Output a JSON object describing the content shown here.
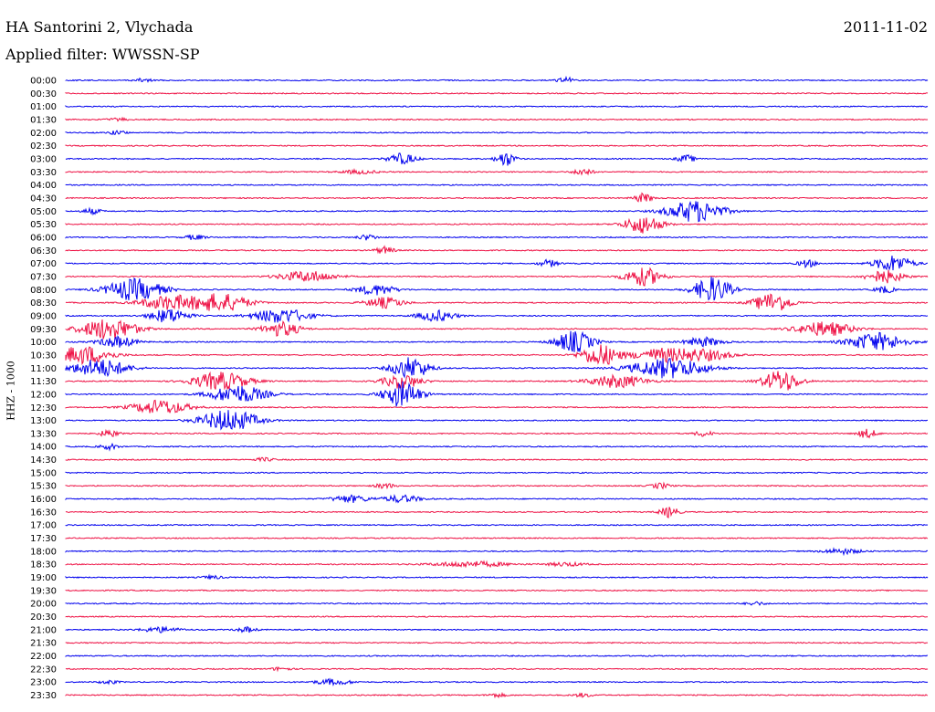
{
  "header": {
    "station": "HA Santorini 2, Vlychada",
    "filter": "Applied filter: WWSSN-SP",
    "date": "2011-11-02"
  },
  "colors": {
    "odd": "#0000ee",
    "even": "#ee1144"
  },
  "chart_data": {
    "type": "line",
    "title": "HA Santorini 2, Vlychada",
    "ylabel": "HHZ - 1000",
    "date": "2011-11-02",
    "filter": "WWSSN-SP",
    "rows": [
      {
        "label": "00:00",
        "color": "#0000ee",
        "events": [
          {
            "x": 0.09,
            "amp": 2,
            "w": 0.01
          },
          {
            "x": 0.58,
            "amp": 3,
            "w": 0.01
          }
        ]
      },
      {
        "label": "00:30",
        "color": "#ee1144",
        "events": []
      },
      {
        "label": "01:00",
        "color": "#0000ee",
        "events": []
      },
      {
        "label": "01:30",
        "color": "#ee1144",
        "events": [
          {
            "x": 0.06,
            "amp": 2,
            "w": 0.01
          }
        ]
      },
      {
        "label": "02:00",
        "color": "#0000ee",
        "events": [
          {
            "x": 0.06,
            "amp": 2,
            "w": 0.01
          }
        ]
      },
      {
        "label": "02:30",
        "color": "#ee1144",
        "events": []
      },
      {
        "label": "03:00",
        "color": "#0000ee",
        "events": [
          {
            "x": 0.39,
            "amp": 6,
            "w": 0.015
          },
          {
            "x": 0.51,
            "amp": 8,
            "w": 0.01
          },
          {
            "x": 0.72,
            "amp": 4,
            "w": 0.01
          }
        ]
      },
      {
        "label": "03:30",
        "color": "#ee1144",
        "events": [
          {
            "x": 0.34,
            "amp": 2,
            "w": 0.02
          },
          {
            "x": 0.6,
            "amp": 4,
            "w": 0.01
          }
        ]
      },
      {
        "label": "04:00",
        "color": "#0000ee",
        "events": []
      },
      {
        "label": "04:30",
        "color": "#ee1144",
        "events": [
          {
            "x": 0.67,
            "amp": 5,
            "w": 0.01
          }
        ]
      },
      {
        "label": "05:00",
        "color": "#0000ee",
        "events": [
          {
            "x": 0.03,
            "amp": 3,
            "w": 0.01
          },
          {
            "x": 0.73,
            "amp": 12,
            "w": 0.03
          }
        ]
      },
      {
        "label": "05:30",
        "color": "#ee1144",
        "events": [
          {
            "x": 0.67,
            "amp": 10,
            "w": 0.02
          }
        ]
      },
      {
        "label": "06:00",
        "color": "#0000ee",
        "events": [
          {
            "x": 0.15,
            "amp": 3,
            "w": 0.01
          },
          {
            "x": 0.35,
            "amp": 3,
            "w": 0.01
          }
        ]
      },
      {
        "label": "06:30",
        "color": "#ee1144",
        "events": [
          {
            "x": 0.37,
            "amp": 4,
            "w": 0.01
          }
        ]
      },
      {
        "label": "07:00",
        "color": "#0000ee",
        "events": [
          {
            "x": 0.56,
            "amp": 4,
            "w": 0.01
          },
          {
            "x": 0.86,
            "amp": 4,
            "w": 0.01
          },
          {
            "x": 0.96,
            "amp": 9,
            "w": 0.02
          }
        ]
      },
      {
        "label": "07:30",
        "color": "#ee1144",
        "events": [
          {
            "x": 0.28,
            "amp": 6,
            "w": 0.03
          },
          {
            "x": 0.67,
            "amp": 10,
            "w": 0.02
          },
          {
            "x": 0.95,
            "amp": 7,
            "w": 0.02
          }
        ]
      },
      {
        "label": "08:00",
        "color": "#0000ee",
        "events": [
          {
            "x": 0.08,
            "amp": 12,
            "w": 0.03
          },
          {
            "x": 0.36,
            "amp": 6,
            "w": 0.02
          },
          {
            "x": 0.75,
            "amp": 14,
            "w": 0.02
          },
          {
            "x": 0.95,
            "amp": 4,
            "w": 0.01
          }
        ]
      },
      {
        "label": "08:30",
        "color": "#ee1144",
        "events": [
          {
            "x": 0.12,
            "amp": 8,
            "w": 0.03
          },
          {
            "x": 0.18,
            "amp": 10,
            "w": 0.03
          },
          {
            "x": 0.37,
            "amp": 6,
            "w": 0.02
          },
          {
            "x": 0.82,
            "amp": 11,
            "w": 0.02
          }
        ]
      },
      {
        "label": "09:00",
        "color": "#0000ee",
        "events": [
          {
            "x": 0.12,
            "amp": 8,
            "w": 0.02
          },
          {
            "x": 0.25,
            "amp": 8,
            "w": 0.03
          },
          {
            "x": 0.43,
            "amp": 6,
            "w": 0.02
          }
        ]
      },
      {
        "label": "09:30",
        "color": "#ee1144",
        "events": [
          {
            "x": 0.05,
            "amp": 12,
            "w": 0.03
          },
          {
            "x": 0.25,
            "amp": 8,
            "w": 0.02
          },
          {
            "x": 0.88,
            "amp": 8,
            "w": 0.03
          }
        ]
      },
      {
        "label": "10:00",
        "color": "#0000ee",
        "events": [
          {
            "x": 0.06,
            "amp": 6,
            "w": 0.02
          },
          {
            "x": 0.59,
            "amp": 12,
            "w": 0.02
          },
          {
            "x": 0.74,
            "amp": 5,
            "w": 0.02
          },
          {
            "x": 0.94,
            "amp": 10,
            "w": 0.03
          }
        ]
      },
      {
        "label": "10:30",
        "color": "#ee1144",
        "events": [
          {
            "x": 0.02,
            "amp": 10,
            "w": 0.03
          },
          {
            "x": 0.62,
            "amp": 12,
            "w": 0.02
          },
          {
            "x": 0.69,
            "amp": 7,
            "w": 0.03
          },
          {
            "x": 0.74,
            "amp": 6,
            "w": 0.03
          }
        ]
      },
      {
        "label": "11:00",
        "color": "#0000ee",
        "events": [
          {
            "x": 0.04,
            "amp": 10,
            "w": 0.03
          },
          {
            "x": 0.4,
            "amp": 12,
            "w": 0.02
          },
          {
            "x": 0.7,
            "amp": 11,
            "w": 0.04
          }
        ]
      },
      {
        "label": "11:30",
        "color": "#ee1144",
        "events": [
          {
            "x": 0.18,
            "amp": 10,
            "w": 0.03
          },
          {
            "x": 0.39,
            "amp": 8,
            "w": 0.02
          },
          {
            "x": 0.64,
            "amp": 7,
            "w": 0.03
          },
          {
            "x": 0.83,
            "amp": 12,
            "w": 0.02
          }
        ]
      },
      {
        "label": "12:00",
        "color": "#0000ee",
        "events": [
          {
            "x": 0.2,
            "amp": 10,
            "w": 0.03
          },
          {
            "x": 0.39,
            "amp": 14,
            "w": 0.02
          }
        ]
      },
      {
        "label": "12:30",
        "color": "#ee1144",
        "events": [
          {
            "x": 0.11,
            "amp": 8,
            "w": 0.03
          }
        ]
      },
      {
        "label": "13:00",
        "color": "#0000ee",
        "events": [
          {
            "x": 0.19,
            "amp": 12,
            "w": 0.03
          }
        ]
      },
      {
        "label": "13:30",
        "color": "#ee1144",
        "events": [
          {
            "x": 0.05,
            "amp": 4,
            "w": 0.01
          },
          {
            "x": 0.74,
            "amp": 3,
            "w": 0.01
          },
          {
            "x": 0.93,
            "amp": 5,
            "w": 0.01
          }
        ]
      },
      {
        "label": "14:00",
        "color": "#0000ee",
        "events": [
          {
            "x": 0.05,
            "amp": 3,
            "w": 0.01
          }
        ]
      },
      {
        "label": "14:30",
        "color": "#ee1144",
        "events": [
          {
            "x": 0.23,
            "amp": 2,
            "w": 0.01
          }
        ]
      },
      {
        "label": "15:00",
        "color": "#0000ee",
        "events": []
      },
      {
        "label": "15:30",
        "color": "#ee1144",
        "events": [
          {
            "x": 0.37,
            "amp": 3,
            "w": 0.01
          },
          {
            "x": 0.69,
            "amp": 3,
            "w": 0.01
          }
        ]
      },
      {
        "label": "16:00",
        "color": "#0000ee",
        "events": [
          {
            "x": 0.33,
            "amp": 4,
            "w": 0.02
          },
          {
            "x": 0.39,
            "amp": 4,
            "w": 0.02
          }
        ]
      },
      {
        "label": "16:30",
        "color": "#ee1144",
        "events": [
          {
            "x": 0.7,
            "amp": 6,
            "w": 0.01
          }
        ]
      },
      {
        "label": "17:00",
        "color": "#0000ee",
        "events": []
      },
      {
        "label": "17:30",
        "color": "#ee1144",
        "events": []
      },
      {
        "label": "18:00",
        "color": "#0000ee",
        "events": [
          {
            "x": 0.9,
            "amp": 3,
            "w": 0.02
          }
        ]
      },
      {
        "label": "18:30",
        "color": "#ee1144",
        "events": [
          {
            "x": 0.47,
            "amp": 3,
            "w": 0.04
          },
          {
            "x": 0.58,
            "amp": 2,
            "w": 0.02
          }
        ]
      },
      {
        "label": "19:00",
        "color": "#0000ee",
        "events": [
          {
            "x": 0.17,
            "amp": 2,
            "w": 0.01
          }
        ]
      },
      {
        "label": "19:30",
        "color": "#ee1144",
        "events": []
      },
      {
        "label": "20:00",
        "color": "#0000ee",
        "events": [
          {
            "x": 0.8,
            "amp": 2,
            "w": 0.01
          }
        ]
      },
      {
        "label": "20:30",
        "color": "#ee1144",
        "events": []
      },
      {
        "label": "21:00",
        "color": "#0000ee",
        "events": [
          {
            "x": 0.11,
            "amp": 3,
            "w": 0.02
          },
          {
            "x": 0.21,
            "amp": 3,
            "w": 0.01
          }
        ]
      },
      {
        "label": "21:30",
        "color": "#ee1144",
        "events": []
      },
      {
        "label": "22:00",
        "color": "#0000ee",
        "events": []
      },
      {
        "label": "22:30",
        "color": "#ee1144",
        "events": [
          {
            "x": 0.25,
            "amp": 2,
            "w": 0.01
          }
        ]
      },
      {
        "label": "23:00",
        "color": "#0000ee",
        "events": [
          {
            "x": 0.31,
            "amp": 3,
            "w": 0.02
          },
          {
            "x": 0.05,
            "amp": 2,
            "w": 0.01
          }
        ]
      },
      {
        "label": "23:30",
        "color": "#ee1144",
        "events": [
          {
            "x": 0.5,
            "amp": 2,
            "w": 0.01
          },
          {
            "x": 0.6,
            "amp": 2,
            "w": 0.01
          }
        ]
      }
    ]
  }
}
